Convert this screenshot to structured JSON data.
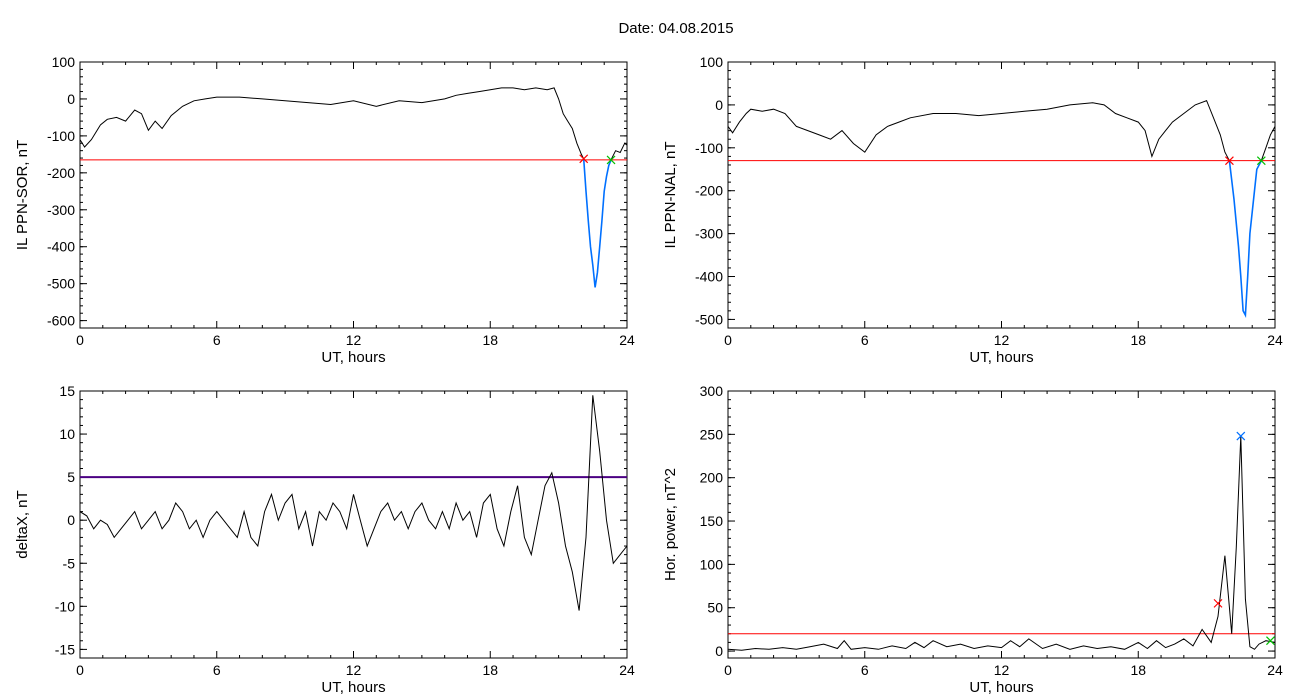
{
  "figure": {
    "title": "Date:  04.08.2015"
  },
  "chart_data": [
    {
      "id": "p1",
      "type": "line",
      "xlabel": "UT, hours",
      "ylabel": "IL PPN-SOR, nT",
      "xlim": [
        0,
        24
      ],
      "ylim": [
        -620,
        100
      ],
      "xticks": [
        0,
        6,
        12,
        18,
        24
      ],
      "yticks": [
        -600,
        -500,
        -400,
        -300,
        -200,
        -100,
        0,
        100
      ],
      "threshold": {
        "value": -165,
        "color": "#ff0000"
      },
      "series": [
        {
          "color": "#000000",
          "x": [
            0,
            0.2,
            0.5,
            0.9,
            1.2,
            1.6,
            2.0,
            2.4,
            2.7,
            3.0,
            3.3,
            3.6,
            4.0,
            4.5,
            5.0,
            5.5,
            6.0,
            7.0,
            8.0,
            9.0,
            10.0,
            11.0,
            12.0,
            13.0,
            14.0,
            15.0,
            16.0,
            16.5,
            17.0,
            17.5,
            18.0,
            18.5,
            19.0,
            19.5,
            20.0,
            20.5,
            20.8,
            21.0,
            21.2,
            21.4,
            21.6,
            21.8,
            22.0,
            22.1
          ],
          "y": [
            -110,
            -130,
            -110,
            -70,
            -55,
            -50,
            -60,
            -30,
            -40,
            -85,
            -60,
            -80,
            -45,
            -20,
            -5,
            0,
            5,
            5,
            0,
            -5,
            -10,
            -15,
            -5,
            -20,
            -5,
            -10,
            0,
            10,
            15,
            20,
            25,
            30,
            30,
            25,
            30,
            25,
            30,
            0,
            -40,
            -60,
            -80,
            -120,
            -150,
            -162
          ]
        },
        {
          "color": "#0070ff",
          "x": [
            22.1,
            22.2,
            22.3,
            22.4,
            22.5,
            22.6,
            22.7,
            22.8,
            22.9,
            23.0,
            23.1,
            23.2,
            23.3
          ],
          "y": [
            -162,
            -250,
            -330,
            -400,
            -450,
            -510,
            -470,
            -400,
            -330,
            -250,
            -210,
            -180,
            -165
          ]
        },
        {
          "color": "#000000",
          "x": [
            23.3,
            23.5,
            23.7,
            23.9,
            24.0
          ],
          "y": [
            -165,
            -140,
            -145,
            -120,
            -125
          ]
        }
      ],
      "markers": [
        {
          "x": 22.1,
          "y": -162,
          "color": "#ff0000"
        },
        {
          "x": 23.3,
          "y": -165,
          "color": "#00c000"
        }
      ]
    },
    {
      "id": "p2",
      "type": "line",
      "xlabel": "UT, hours",
      "ylabel": "IL PPN-NAL, nT",
      "xlim": [
        0,
        24
      ],
      "ylim": [
        -520,
        100
      ],
      "xticks": [
        0,
        6,
        12,
        18,
        24
      ],
      "yticks": [
        -500,
        -400,
        -300,
        -200,
        -100,
        0,
        100
      ],
      "threshold": {
        "value": -130,
        "color": "#ff0000"
      },
      "series": [
        {
          "color": "#000000",
          "x": [
            0,
            0.2,
            0.5,
            0.8,
            1.0,
            1.5,
            2.0,
            2.5,
            3.0,
            3.5,
            4.0,
            4.5,
            5.0,
            5.5,
            6.0,
            6.5,
            7.0,
            7.5,
            8.0,
            9.0,
            10.0,
            11.0,
            12.0,
            13.0,
            14.0,
            15.0,
            16.0,
            16.5,
            17.0,
            17.5,
            18.0,
            18.3,
            18.6,
            18.9,
            19.2,
            19.5,
            20.0,
            20.5,
            21.0,
            21.3,
            21.6,
            21.8,
            22.0
          ],
          "y": [
            -50,
            -65,
            -40,
            -20,
            -10,
            -15,
            -10,
            -20,
            -50,
            -60,
            -70,
            -80,
            -60,
            -90,
            -110,
            -70,
            -50,
            -40,
            -30,
            -20,
            -20,
            -25,
            -20,
            -15,
            -10,
            0,
            5,
            0,
            -20,
            -30,
            -40,
            -60,
            -120,
            -80,
            -60,
            -40,
            -20,
            0,
            10,
            -30,
            -70,
            -110,
            -130
          ]
        },
        {
          "color": "#0070ff",
          "x": [
            22.0,
            22.2,
            22.4,
            22.5,
            22.6,
            22.7,
            22.8,
            22.9,
            23.0,
            23.1,
            23.2,
            23.4
          ],
          "y": [
            -130,
            -220,
            -330,
            -400,
            -480,
            -490,
            -400,
            -300,
            -250,
            -200,
            -150,
            -130
          ]
        },
        {
          "color": "#000000",
          "x": [
            23.4,
            23.6,
            23.8,
            24.0
          ],
          "y": [
            -130,
            -100,
            -70,
            -50
          ]
        }
      ],
      "markers": [
        {
          "x": 22.0,
          "y": -130,
          "color": "#ff0000"
        },
        {
          "x": 23.4,
          "y": -130,
          "color": "#00c000"
        }
      ]
    },
    {
      "id": "p3",
      "type": "line",
      "xlabel": "UT, hours",
      "ylabel": "deltaX, nT",
      "xlim": [
        0,
        24
      ],
      "ylim": [
        -16,
        15
      ],
      "xticks": [
        0,
        6,
        12,
        18,
        24
      ],
      "yticks": [
        -15,
        -10,
        -5,
        0,
        5,
        10,
        15
      ],
      "threshold": {
        "value": 5,
        "color": "#4b0082"
      },
      "series": [
        {
          "color": "#000000",
          "x": [
            0,
            0.3,
            0.6,
            0.9,
            1.2,
            1.5,
            1.8,
            2.1,
            2.4,
            2.7,
            3.0,
            3.3,
            3.6,
            3.9,
            4.2,
            4.5,
            4.8,
            5.1,
            5.4,
            5.7,
            6.0,
            6.3,
            6.6,
            6.9,
            7.2,
            7.5,
            7.8,
            8.1,
            8.4,
            8.7,
            9.0,
            9.3,
            9.6,
            9.9,
            10.2,
            10.5,
            10.8,
            11.1,
            11.4,
            11.7,
            12.0,
            12.3,
            12.6,
            12.9,
            13.2,
            13.5,
            13.8,
            14.1,
            14.4,
            14.7,
            15.0,
            15.3,
            15.6,
            15.9,
            16.2,
            16.5,
            16.8,
            17.1,
            17.4,
            17.7,
            18.0,
            18.3,
            18.6,
            18.9,
            19.2,
            19.5,
            19.8,
            20.1,
            20.4,
            20.7,
            21.0,
            21.3,
            21.6,
            21.9,
            22.2,
            22.5,
            22.8,
            23.1,
            23.4,
            23.7,
            24.0
          ],
          "y": [
            1,
            0.5,
            -1,
            0,
            -0.5,
            -2,
            -1,
            0,
            1,
            -1,
            0,
            1,
            -1,
            0,
            2,
            1,
            -1,
            0,
            -2,
            0,
            1,
            0,
            -1,
            -2,
            1,
            -2,
            -3,
            1,
            3,
            0,
            2,
            3,
            -1,
            1,
            -3,
            1,
            0,
            2,
            1,
            -1,
            3,
            0,
            -3,
            -1,
            1,
            2,
            0,
            1,
            -1,
            1,
            2,
            0,
            -1,
            1,
            -1,
            2,
            0,
            1,
            -2,
            2,
            3,
            -1,
            -3,
            1,
            4,
            -2,
            -4,
            0,
            4,
            5.5,
            2,
            -3,
            -6,
            -10.5,
            -2,
            14.5,
            8,
            0,
            -5,
            -4,
            -3
          ]
        }
      ]
    },
    {
      "id": "p4",
      "type": "line",
      "xlabel": "UT, hours",
      "ylabel": "Hor. power, nT^2",
      "xlim": [
        0,
        24
      ],
      "ylim": [
        -8,
        300
      ],
      "xticks": [
        0,
        6,
        12,
        18,
        24
      ],
      "yticks": [
        0,
        50,
        100,
        150,
        200,
        250,
        300
      ],
      "threshold": {
        "value": 20,
        "color": "#ff0000"
      },
      "series": [
        {
          "color": "#000000",
          "x": [
            0,
            0.6,
            1.2,
            1.8,
            2.4,
            3.0,
            3.6,
            4.2,
            4.8,
            5.1,
            5.4,
            6.0,
            6.6,
            7.2,
            7.8,
            8.2,
            8.6,
            9.0,
            9.6,
            10.2,
            10.8,
            11.4,
            12.0,
            12.4,
            12.8,
            13.2,
            13.8,
            14.4,
            15.0,
            15.6,
            16.2,
            16.8,
            17.4,
            18.0,
            18.4,
            18.8,
            19.2,
            19.6,
            20.0,
            20.4,
            20.8,
            21.2,
            21.5,
            21.8,
            22.1,
            22.3,
            22.5,
            22.7,
            22.9,
            23.1,
            23.3,
            23.6,
            24.0
          ],
          "y": [
            2,
            1,
            3,
            2,
            4,
            2,
            5,
            8,
            3,
            12,
            2,
            4,
            2,
            6,
            3,
            10,
            4,
            12,
            5,
            8,
            3,
            6,
            4,
            12,
            5,
            14,
            3,
            8,
            2,
            6,
            3,
            5,
            2,
            10,
            3,
            12,
            4,
            8,
            14,
            6,
            25,
            10,
            40,
            110,
            20,
            120,
            248,
            60,
            5,
            2,
            8,
            12,
            10
          ]
        }
      ],
      "markers": [
        {
          "x": 21.5,
          "y": 55,
          "color": "#ff0000"
        },
        {
          "x": 22.5,
          "y": 248,
          "color": "#0070ff"
        },
        {
          "x": 23.8,
          "y": 12,
          "color": "#00c000"
        }
      ]
    }
  ]
}
